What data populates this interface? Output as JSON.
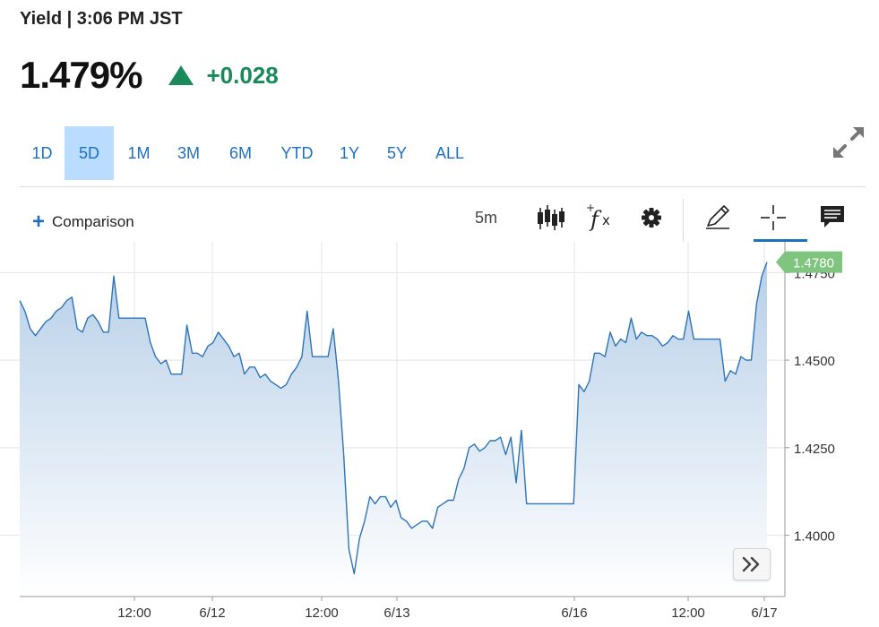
{
  "header": {
    "title": "Yield | 3:06 PM JST",
    "price": "1.479%",
    "change": "+0.028",
    "direction_icon": "up-triangle-icon",
    "up_color": "#1a8a5a"
  },
  "range_tabs": [
    {
      "label": "1D",
      "active": false
    },
    {
      "label": "5D",
      "active": true
    },
    {
      "label": "1M",
      "active": false
    },
    {
      "label": "3M",
      "active": false
    },
    {
      "label": "6M",
      "active": false
    },
    {
      "label": "YTD",
      "active": false
    },
    {
      "label": "1Y",
      "active": false
    },
    {
      "label": "5Y",
      "active": false
    },
    {
      "label": "ALL",
      "active": false
    }
  ],
  "toolbar": {
    "comparison_label": "Comparison",
    "interval_label": "5m",
    "icons": [
      "candlestick-icon",
      "fx-icon",
      "gear-icon",
      "pencil-icon",
      "crosshair-icon",
      "comment-icon"
    ],
    "expand_icon": "expand-icon",
    "nav_icon": "double-chevron-right-icon"
  },
  "chart_data": {
    "type": "area",
    "ylim": [
      1.3825,
      1.4825
    ],
    "yticks": [
      1.4,
      1.425,
      1.45,
      1.475
    ],
    "ytick_labels": [
      "1.4000",
      "1.4250",
      "1.4500",
      "1.4750"
    ],
    "xtick_labels": [
      "12:00",
      "6/12",
      "12:00",
      "6/13",
      "6/16",
      "12:00",
      "6/17"
    ],
    "last_value_label": "1.4780",
    "line_color": "#2f74b5",
    "fill_top_color": "#b7cfe8",
    "last_value_color": "#7fc47f",
    "grid": true,
    "y": [
      1.467,
      1.464,
      1.459,
      1.457,
      1.459,
      1.461,
      1.462,
      1.464,
      1.465,
      1.467,
      1.468,
      1.459,
      1.458,
      1.462,
      1.463,
      1.461,
      1.458,
      1.458,
      1.474,
      1.462,
      1.462,
      1.462,
      1.462,
      1.462,
      1.462,
      1.455,
      1.451,
      1.449,
      1.45,
      1.446,
      1.446,
      1.446,
      1.46,
      1.452,
      1.452,
      1.451,
      1.454,
      1.455,
      1.458,
      1.456,
      1.454,
      1.451,
      1.452,
      1.446,
      1.448,
      1.448,
      1.445,
      1.446,
      1.444,
      1.443,
      1.442,
      1.443,
      1.446,
      1.448,
      1.451,
      1.464,
      1.451,
      1.451,
      1.451,
      1.451,
      1.459,
      1.444,
      1.423,
      1.396,
      1.389,
      1.399,
      1.404,
      1.411,
      1.409,
      1.411,
      1.411,
      1.408,
      1.41,
      1.405,
      1.404,
      1.402,
      1.403,
      1.404,
      1.404,
      1.402,
      1.408,
      1.409,
      1.41,
      1.41,
      1.416,
      1.419,
      1.425,
      1.426,
      1.424,
      1.425,
      1.427,
      1.427,
      1.428,
      1.423,
      1.428,
      1.415,
      1.43,
      1.409,
      1.409,
      1.409,
      1.409,
      1.409,
      1.409,
      1.409,
      1.409,
      1.409,
      1.409,
      1.443,
      1.441,
      1.444,
      1.452,
      1.452,
      1.451,
      1.458,
      1.454,
      1.456,
      1.455,
      1.462,
      1.456,
      1.458,
      1.457,
      1.457,
      1.456,
      1.454,
      1.455,
      1.457,
      1.456,
      1.456,
      1.464,
      1.456,
      1.456,
      1.456,
      1.456,
      1.456,
      1.456,
      1.444,
      1.447,
      1.446,
      1.451,
      1.45,
      1.45,
      1.466,
      1.474,
      1.478
    ]
  }
}
